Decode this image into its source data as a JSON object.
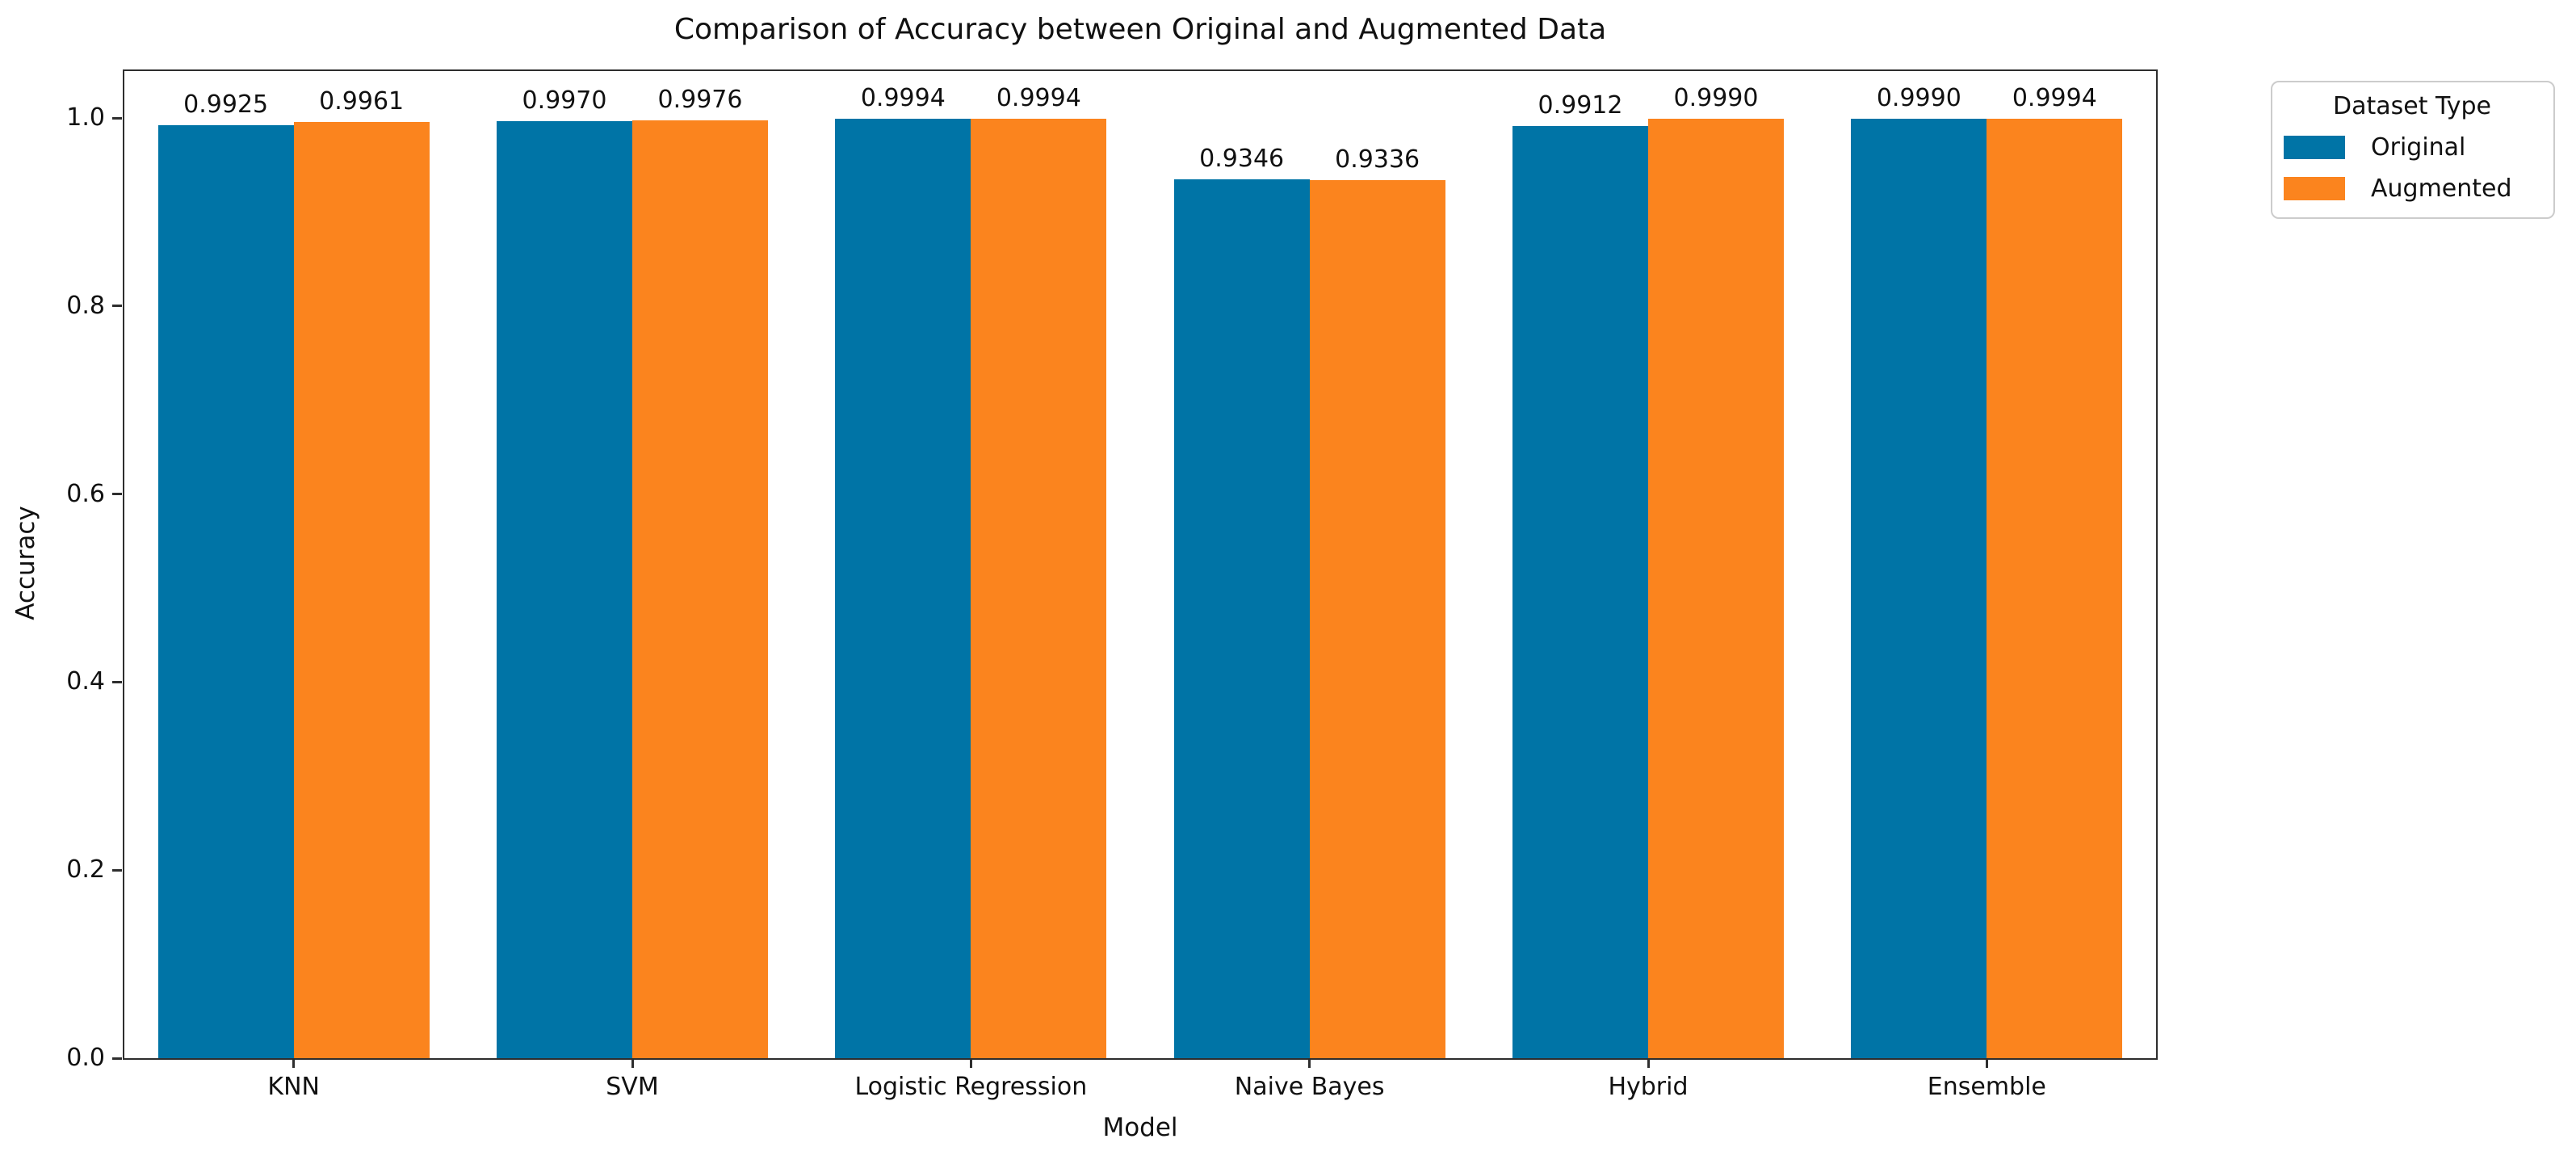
{
  "chart_data": {
    "type": "bar",
    "title": "Comparison of Accuracy between Original and Augmented Data",
    "xlabel": "Model",
    "ylabel": "Accuracy",
    "categories": [
      "KNN",
      "SVM",
      "Logistic Regression",
      "Naive Bayes",
      "Hybrid",
      "Ensemble"
    ],
    "series": [
      {
        "name": "Original",
        "color": "#0074a6",
        "values": [
          0.9925,
          0.997,
          0.9994,
          0.9346,
          0.9912,
          0.999
        ],
        "labels": [
          "0.9925",
          "0.9970",
          "0.9994",
          "0.9346",
          "0.9912",
          "0.9990"
        ]
      },
      {
        "name": "Augmented",
        "color": "#fb841e",
        "values": [
          0.9961,
          0.9976,
          0.9994,
          0.9336,
          0.999,
          0.9994
        ],
        "labels": [
          "0.9961",
          "0.9976",
          "0.9994",
          "0.9336",
          "0.9990",
          "0.9994"
        ]
      }
    ],
    "yticks": [
      "0.0",
      "0.2",
      "0.4",
      "0.6",
      "0.8",
      "1.0"
    ],
    "ylim": [
      0,
      1.05
    ],
    "legend": {
      "title": "Dataset Type",
      "position": "outside upper right"
    },
    "grid": false
  }
}
